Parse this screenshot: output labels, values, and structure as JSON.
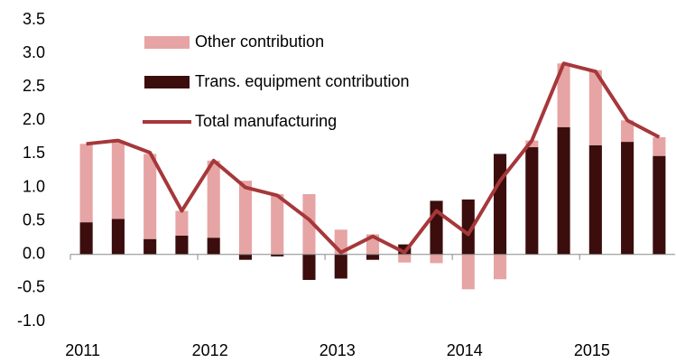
{
  "chart_data": {
    "type": "bar_line",
    "categories": [
      "2011",
      null,
      null,
      null,
      "2012",
      null,
      null,
      null,
      "2013",
      null,
      null,
      null,
      "2014",
      null,
      null,
      null,
      "2015",
      null,
      null
    ],
    "series": [
      {
        "name": "Other contribution",
        "color": "#e6a4a4",
        "type": "bar",
        "values": [
          1.17,
          1.17,
          1.27,
          0.37,
          1.15,
          1.1,
          0.9,
          0.9,
          0.37,
          0.3,
          -0.12,
          -0.13,
          -0.52,
          -0.37,
          0.1,
          0.95,
          1.12,
          0.32,
          0.28
        ]
      },
      {
        "name": "Trans. equipment contribution",
        "color": "#3b0d0d",
        "type": "bar",
        "values": [
          0.48,
          0.53,
          0.23,
          0.28,
          0.25,
          -0.08,
          -0.03,
          -0.38,
          -0.36,
          -0.08,
          0.15,
          0.8,
          0.82,
          1.5,
          1.6,
          1.9,
          1.63,
          1.68,
          1.47
        ]
      },
      {
        "name": "Total manufacturing",
        "color": "#a6373a",
        "type": "line",
        "values": [
          1.65,
          1.7,
          1.52,
          0.65,
          1.4,
          1.0,
          0.88,
          0.52,
          0.03,
          0.27,
          0.03,
          0.65,
          0.3,
          1.1,
          1.7,
          2.85,
          2.73,
          2.0,
          1.75
        ]
      }
    ],
    "ylim": [
      -1.0,
      3.5
    ],
    "yticks": [
      {
        "value": -1,
        "label": "-1.0"
      },
      -0.5,
      {
        "value": 0,
        "label": "0.0"
      },
      0.5,
      {
        "value": 1,
        "label": "1.0"
      },
      1.5,
      {
        "value": 2,
        "label": "2.0"
      },
      2.5,
      {
        "value": 3,
        "label": "3.0"
      },
      3.5
    ],
    "legend": "upper left"
  }
}
